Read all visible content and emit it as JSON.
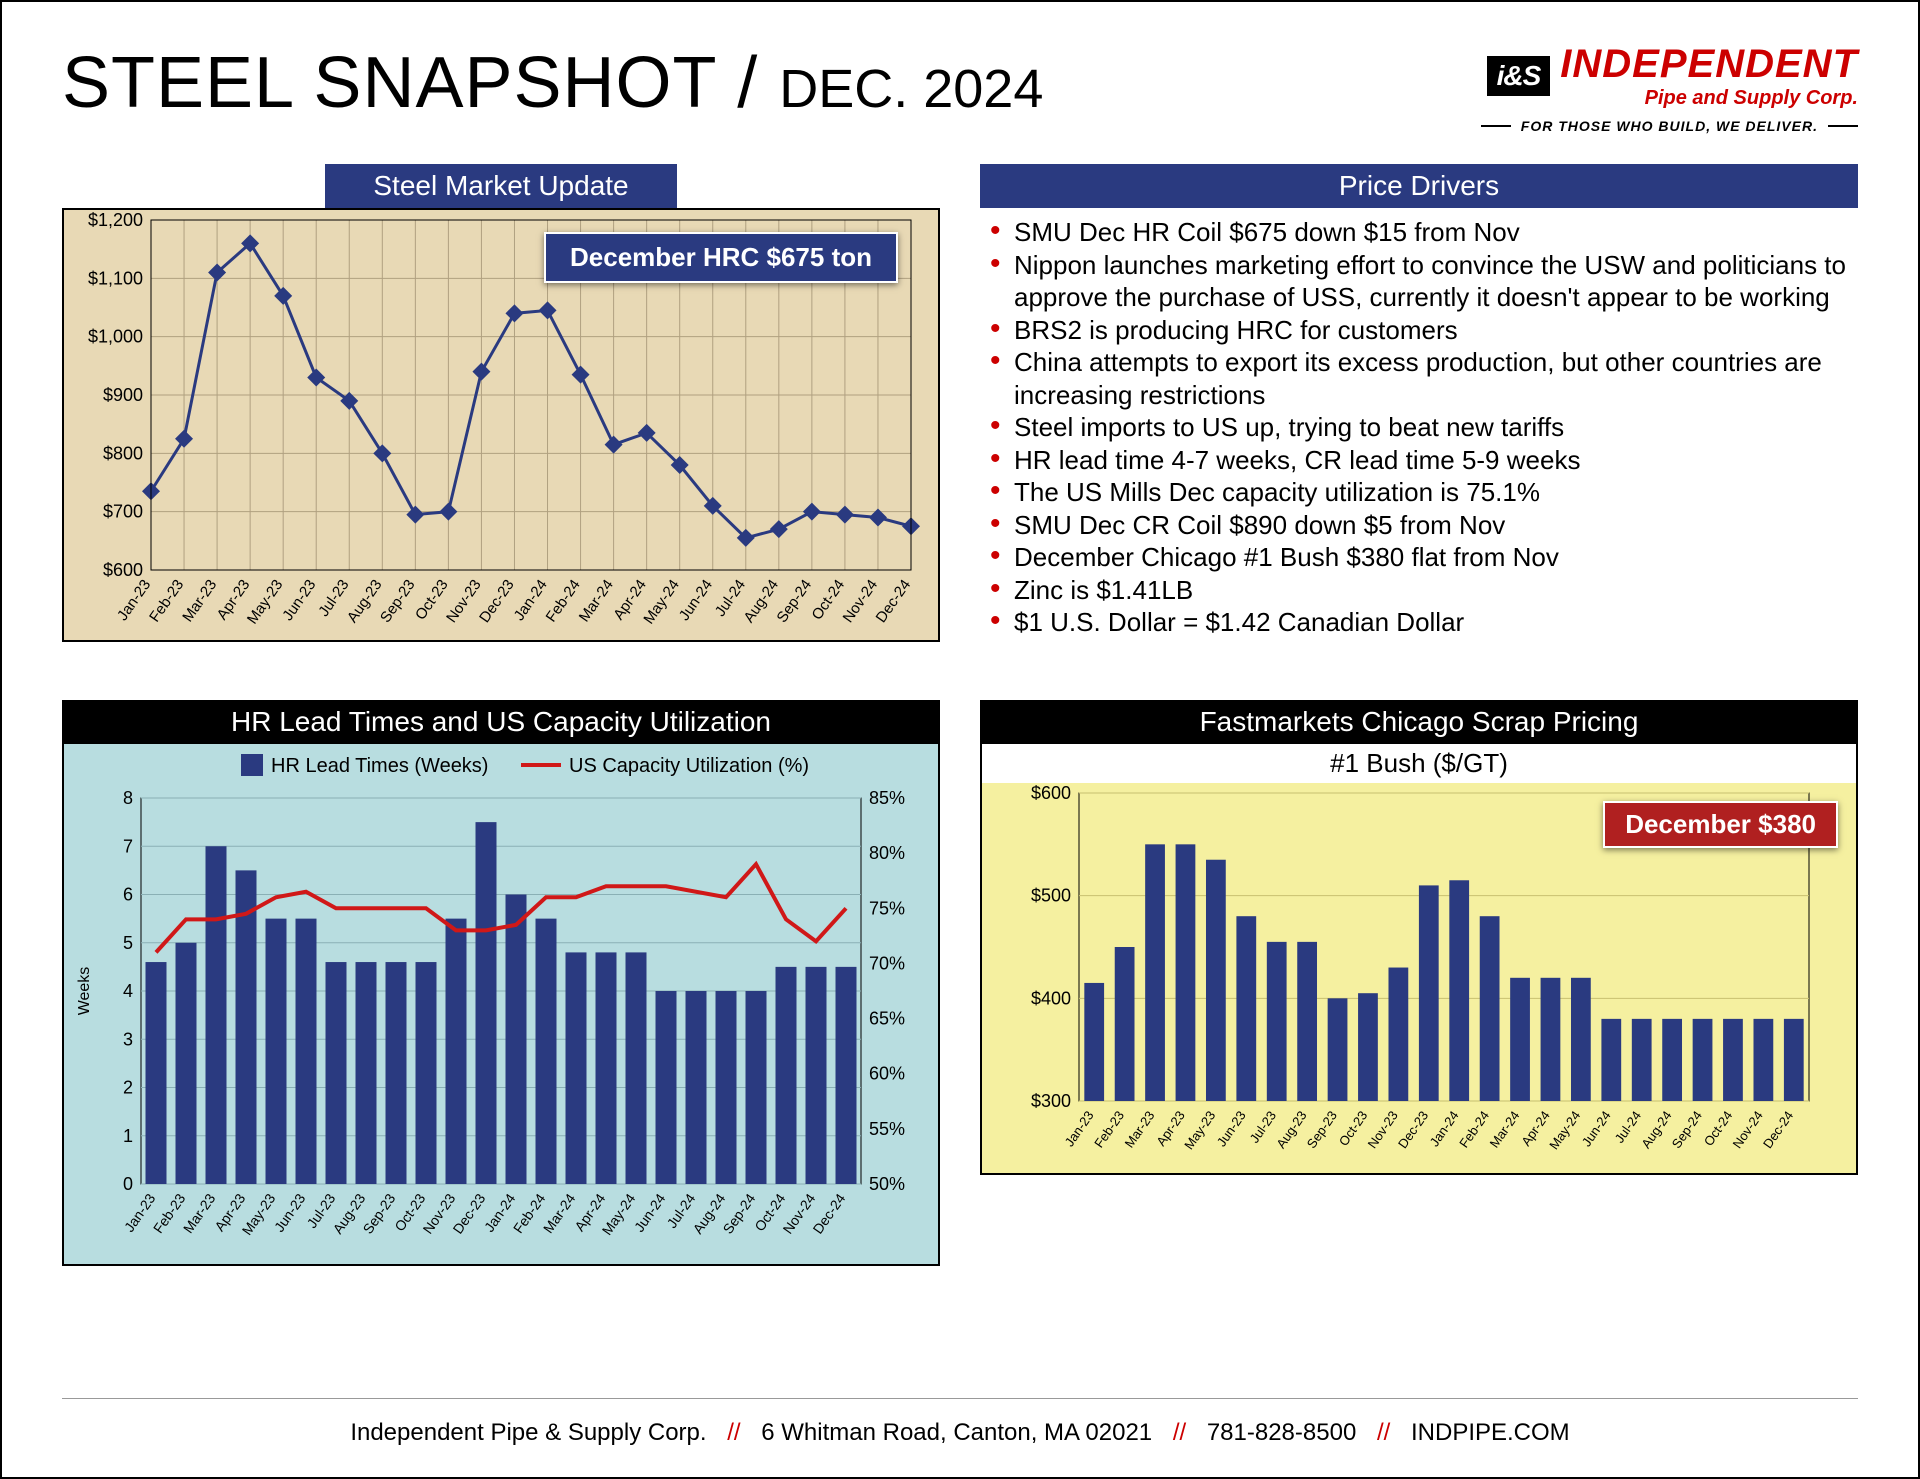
{
  "header": {
    "title_main": "STEEL SNAPSHOT",
    "title_sep": " / ",
    "title_sub": "DEC. 2024",
    "logo_badge": "i&S",
    "logo_line1": "INDEPENDENT",
    "logo_line2": "Pipe and Supply Corp.",
    "logo_tagline": "FOR THOSE WHO BUILD, WE DELIVER."
  },
  "months": [
    "Jan-23",
    "Feb-23",
    "Mar-23",
    "Apr-23",
    "May-23",
    "Jun-23",
    "Jul-23",
    "Aug-23",
    "Sep-23",
    "Oct-23",
    "Nov-23",
    "Dec-23",
    "Jan-24",
    "Feb-24",
    "Mar-24",
    "Apr-24",
    "May-24",
    "Jun-24",
    "Jul-24",
    "Aug-24",
    "Sep-24",
    "Oct-24",
    "Nov-24",
    "Dec-24"
  ],
  "chart1": {
    "title": "Steel Market Update",
    "callout": "December HRC $675 ton",
    "type": "line",
    "data": [
      735,
      825,
      1110,
      1160,
      1070,
      930,
      890,
      800,
      695,
      700,
      940,
      1040,
      1045,
      935,
      815,
      835,
      780,
      710,
      655,
      670,
      700,
      695,
      690,
      675
    ],
    "ylim": [
      600,
      1200
    ],
    "ytick_step": 100,
    "ytick_prefix": "$",
    "ytick_format": "comma",
    "line_color": "#2a3a80",
    "marker": "diamond",
    "marker_size": 9,
    "bg_color": "#e8d9b5",
    "grid_color": "#b0a080",
    "title_bg": "#2a3a80",
    "title_color": "#ffffff",
    "title_fontsize": 28,
    "axis_fontsize": 18
  },
  "chart2": {
    "title": "HR Lead Times and US Capacity Utilization",
    "type": "bar+line",
    "legend_bar": "HR Lead Times (Weeks)",
    "legend_line": "US Capacity Utilization (%)",
    "bars": [
      4.6,
      5.0,
      7.0,
      6.5,
      5.5,
      5.5,
      4.6,
      4.6,
      4.6,
      4.6,
      5.5,
      7.5,
      6.0,
      5.5,
      4.8,
      4.8,
      4.8,
      4.0,
      4.0,
      4.0,
      4.0,
      4.5,
      4.5,
      4.5
    ],
    "bar_ylim": [
      0,
      8
    ],
    "bar_ytick_step": 1,
    "bar_ylabel": "Weeks",
    "line": [
      71,
      74,
      74,
      74.5,
      76,
      76.5,
      75,
      75,
      75,
      75,
      73,
      73,
      73.5,
      76,
      76,
      77,
      77,
      77,
      76.5,
      76,
      79,
      74,
      72,
      75
    ],
    "line_ylim": [
      50,
      85
    ],
    "line_ytick_step": 5,
    "line_suffix": "%",
    "bar_color": "#2a3a80",
    "line_color": "#d01818",
    "line_width": 4,
    "bg_color": "#b8dde0",
    "grid_color": "#8ab0b5",
    "title_bg": "#000000",
    "title_color": "#ffffff",
    "title_fontsize": 26,
    "legend_fontsize": 20,
    "axis_fontsize": 18
  },
  "drivers": {
    "title": "Price Drivers",
    "title_bg": "#2a3a80",
    "items": [
      "SMU Dec HR Coil $675 down $15 from Nov",
      "Nippon launches marketing effort to convince the USW and politicians to approve the purchase of USS, currently it doesn't appear to be working",
      "BRS2 is producing HRC for customers",
      "China attempts to export its excess production, but other countries are increasing restrictions",
      "Steel imports to US up, trying to beat new tariffs",
      "HR lead time 4-7 weeks, CR lead time 5-9 weeks",
      "The US Mills Dec capacity utilization is 75.1%",
      "SMU Dec CR Coil $890 down $5 from Nov",
      "December Chicago #1 Bush $380 flat from Nov",
      "Zinc is $1.41LB",
      "$1 U.S. Dollar = $1.42 Canadian Dollar"
    ]
  },
  "chart3": {
    "title": "Fastmarkets Chicago Scrap Pricing",
    "subtitle": "#1 Bush ($/GT)",
    "callout": "December $380",
    "type": "bar",
    "data": [
      415,
      450,
      550,
      550,
      535,
      480,
      455,
      455,
      400,
      405,
      430,
      510,
      515,
      480,
      420,
      420,
      420,
      380,
      380,
      380,
      380,
      380,
      380,
      380
    ],
    "ylim": [
      300,
      600
    ],
    "ytick_step": 100,
    "ytick_prefix": "$",
    "bar_color": "#2a3a80",
    "bg_color": "#f5f0a0",
    "grid_color": "#c8c070",
    "title_bg": "#000000",
    "title_color": "#ffffff",
    "title_fontsize": 26,
    "axis_fontsize": 18
  },
  "footer": {
    "company": "Independent Pipe & Supply Corp.",
    "address": "6 Whitman Road, Canton, MA 02021",
    "phone": "781-828-8500",
    "web": "INDPIPE.COM"
  },
  "colors": {
    "brand_red": "#cc0000",
    "navy": "#2a3a80",
    "black": "#000000"
  }
}
